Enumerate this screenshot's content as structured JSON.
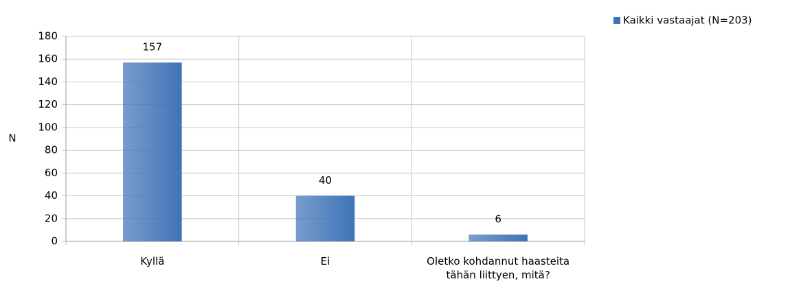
{
  "chart_data": {
    "type": "bar",
    "y_label": "N",
    "categories": [
      "Kyllä",
      "Ei",
      "Oletko kohdannut haasteita tähän liittyen, mitä?"
    ],
    "series": [
      {
        "name": "Kaikki vastaajat (N=203)",
        "color": "#3f73b8",
        "values": [
          157,
          40,
          6
        ]
      }
    ],
    "ylim": [
      0,
      180
    ],
    "yticks": [
      0,
      20,
      40,
      60,
      80,
      100,
      120,
      140,
      160,
      180
    ],
    "grid": true,
    "legend": "top-right"
  }
}
